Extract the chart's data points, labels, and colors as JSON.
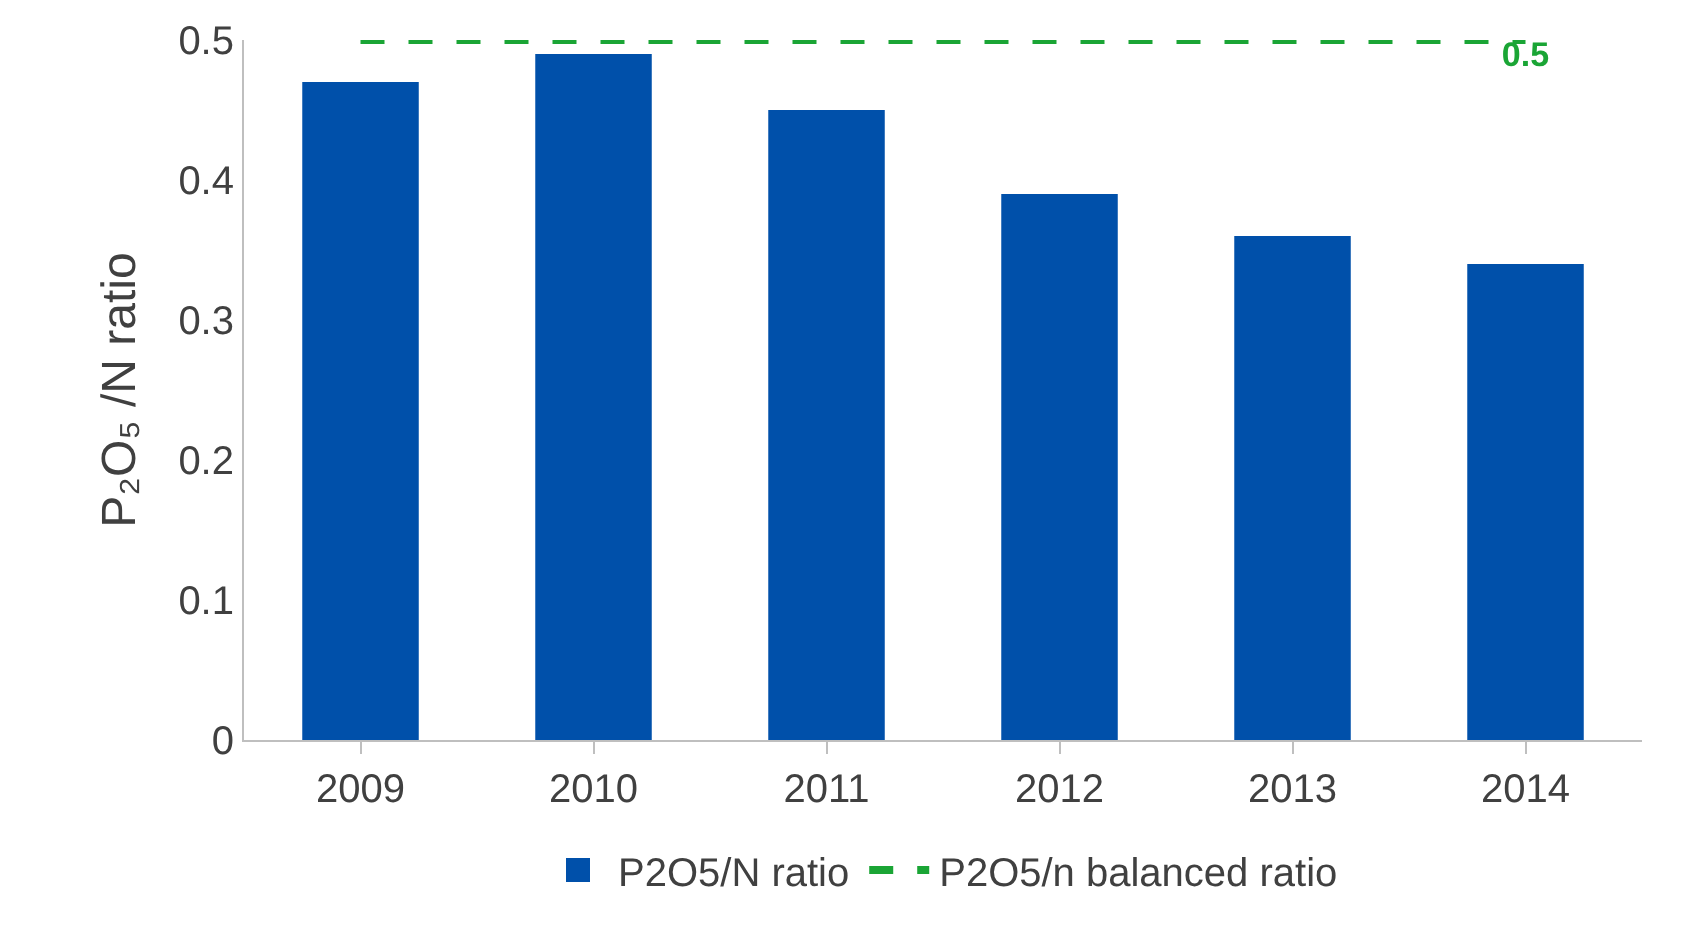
{
  "chart_data": {
    "type": "bar",
    "ylabel": "P₂O₅ /N ratio",
    "categories": [
      "2009",
      "2010",
      "2011",
      "2012",
      "2013",
      "2014"
    ],
    "series": [
      {
        "name": "P2O5/N ratio",
        "color": "#0050aa",
        "values": [
          0.47,
          0.49,
          0.45,
          0.39,
          0.36,
          0.34
        ]
      },
      {
        "name": "P2O5/n balanced ratio",
        "type": "line",
        "color": "#1aa535",
        "line_style": "dashed",
        "marker": "none",
        "values": [
          0.5,
          0.5,
          0.5,
          0.5,
          0.5,
          0.5
        ],
        "value_labels": [
          null,
          null,
          null,
          null,
          null,
          "0.5"
        ]
      }
    ],
    "ylim": [
      0,
      0.5
    ],
    "yticks": [
      0,
      0.1,
      0.2,
      0.3,
      0.4,
      0.5
    ],
    "grid": false,
    "legend": "bottom"
  }
}
